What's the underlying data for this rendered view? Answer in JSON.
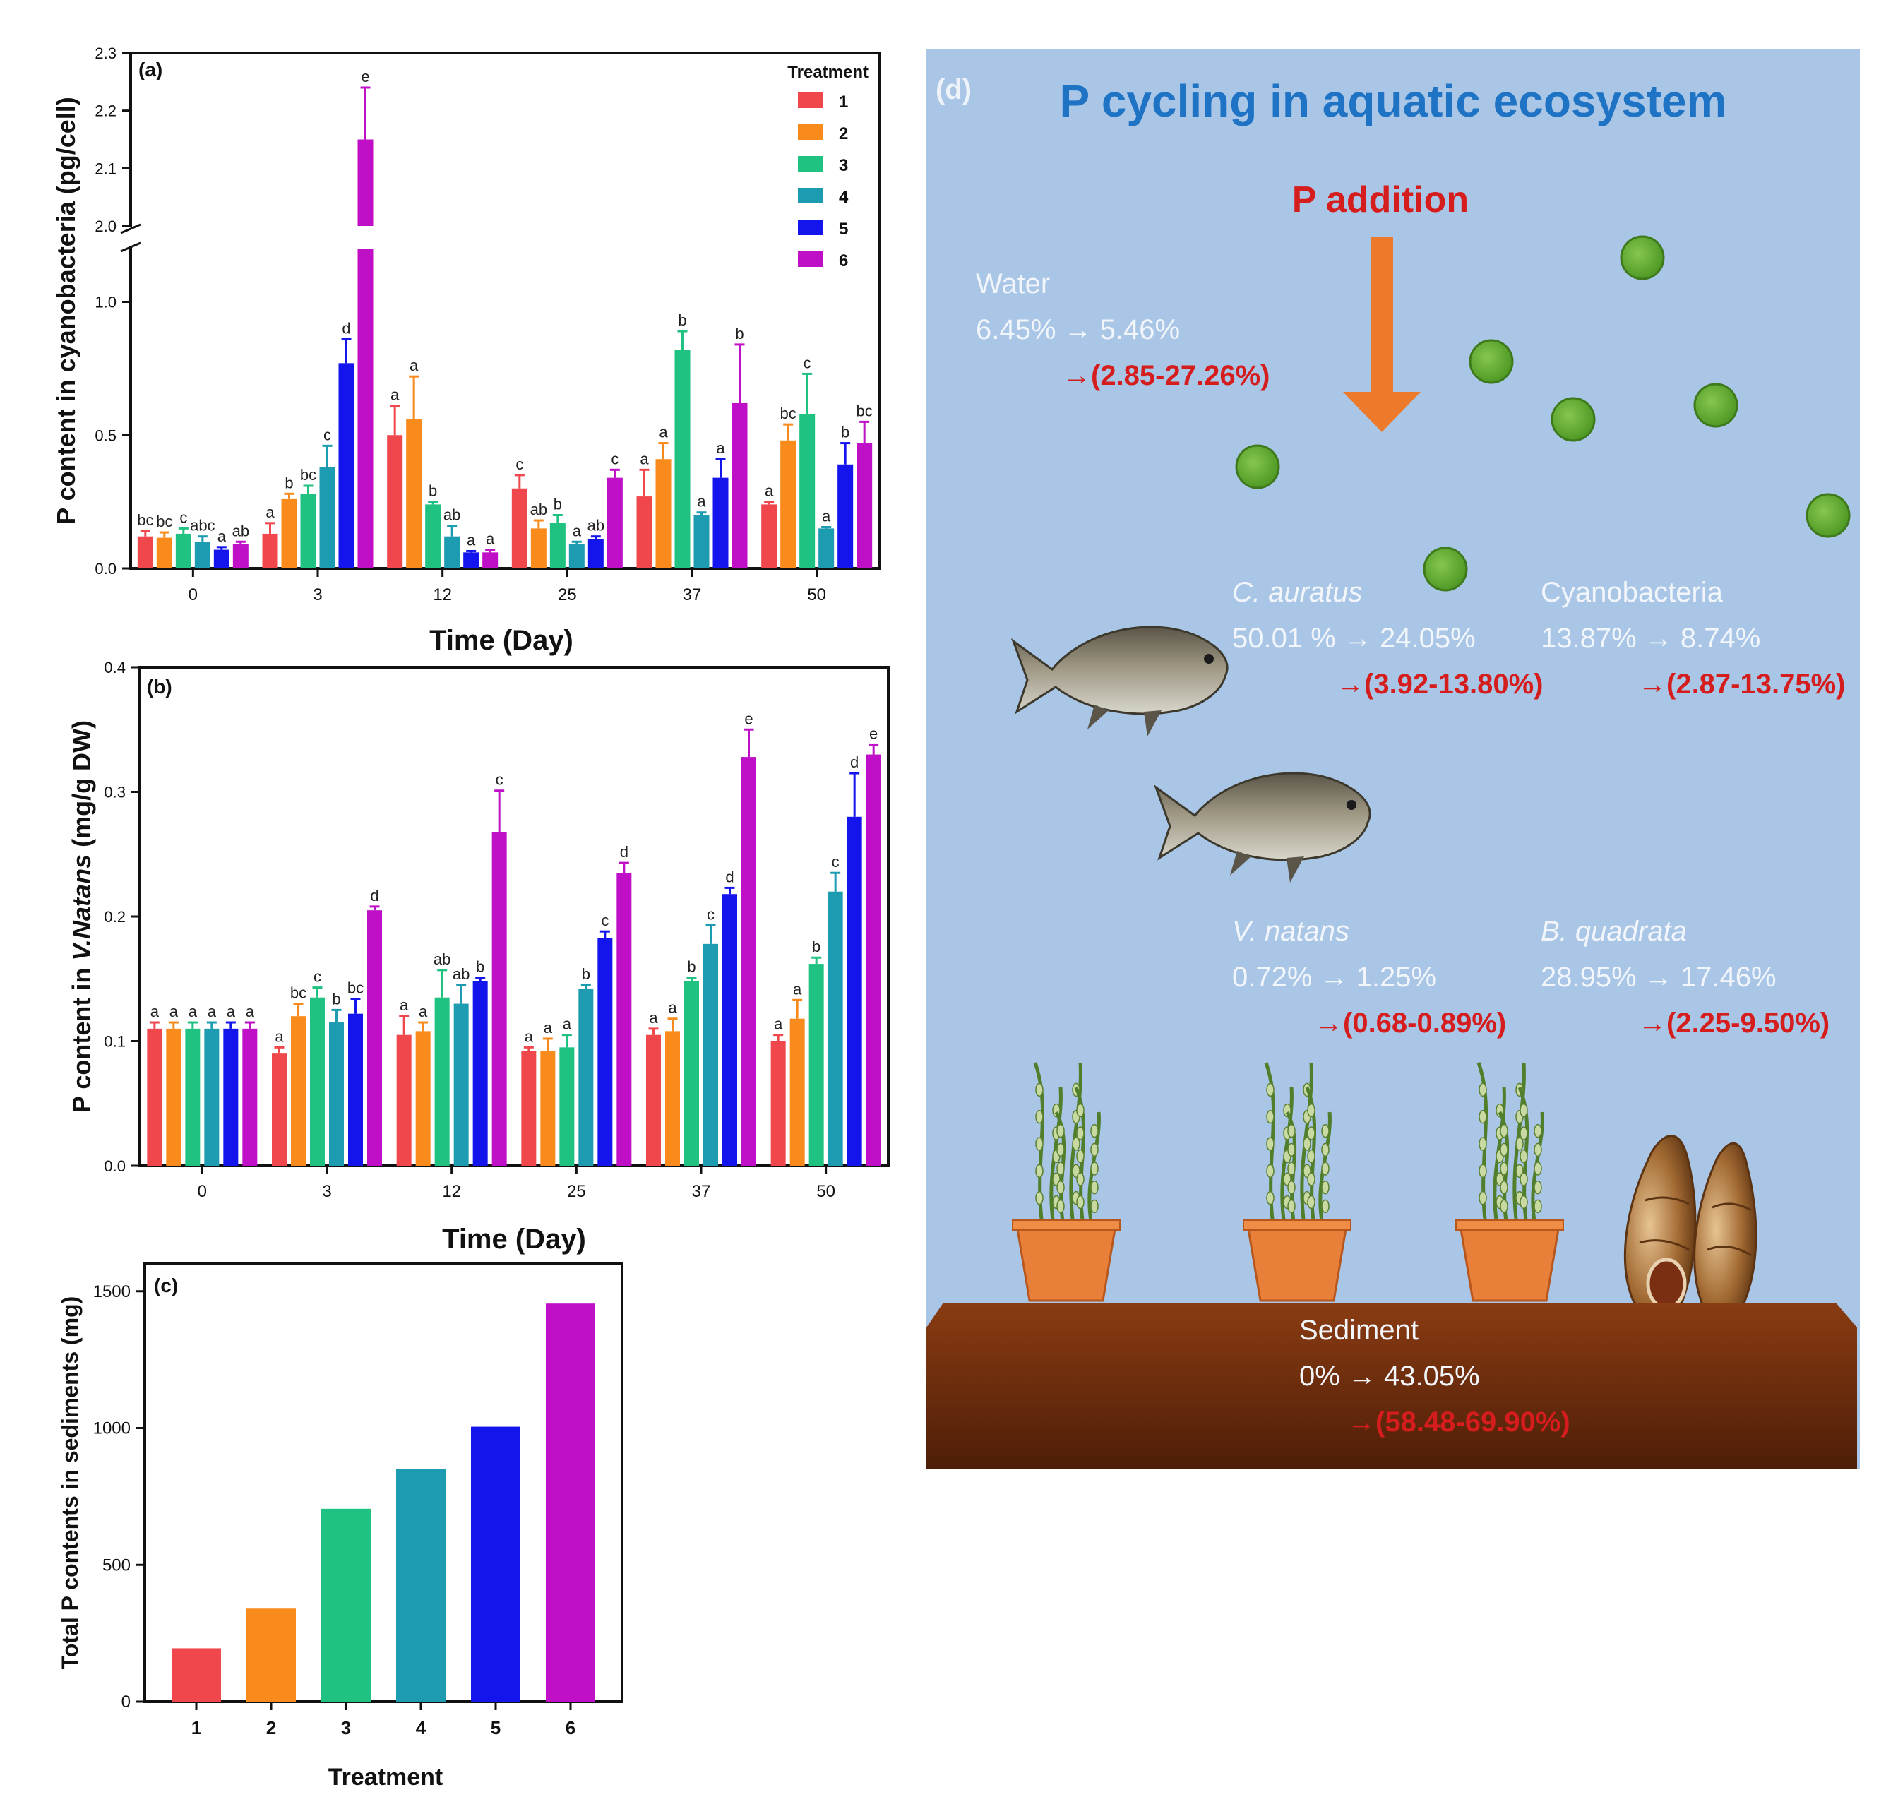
{
  "colors": {
    "treatments": [
      "#f0474c",
      "#f98a1c",
      "#1fc280",
      "#1d9bb0",
      "#1414ec",
      "#bf0fc7"
    ],
    "panel_bg": "#a9c6e6",
    "title_blue": "#1f73c4",
    "red": "#d51d1d",
    "arrow_orange": "#ec7a2a",
    "sediment": "#7a3414",
    "pot": "#e9803a",
    "cell": "#6fb33b",
    "white_text": "#f2f6fb"
  },
  "chart_data": [
    {
      "panel": "(a)",
      "type": "bar",
      "title": "",
      "xlabel": "Time (Day)",
      "ylabel": "P content in cyanobacteria (pg/cell)",
      "categories": [
        "0",
        "3",
        "12",
        "25",
        "37",
        "50"
      ],
      "ylim_lower": [
        0,
        1.2
      ],
      "ylim_upper": [
        2.0,
        2.3
      ],
      "yticks_lower": [
        "0.0",
        "0.5",
        "1.0"
      ],
      "yticks_upper": [
        "2.0",
        "2.1",
        "2.2",
        "2.3"
      ],
      "legend_title": "Treatment",
      "legend_position": "top-right",
      "series": [
        {
          "name": "1",
          "values": [
            0.12,
            0.13,
            0.5,
            0.3,
            0.27,
            0.24
          ],
          "errors": [
            0.02,
            0.04,
            0.11,
            0.05,
            0.1,
            0.01
          ],
          "letters": [
            "bc",
            "a",
            "a",
            "c",
            "a",
            "a"
          ]
        },
        {
          "name": "2",
          "values": [
            0.115,
            0.26,
            0.56,
            0.15,
            0.41,
            0.48
          ],
          "errors": [
            0.02,
            0.02,
            0.16,
            0.03,
            0.06,
            0.06
          ],
          "letters": [
            "bc",
            "b",
            "a",
            "ab",
            "a",
            "bc"
          ]
        },
        {
          "name": "3",
          "values": [
            0.13,
            0.28,
            0.24,
            0.17,
            0.82,
            0.58
          ],
          "errors": [
            0.02,
            0.03,
            0.01,
            0.03,
            0.07,
            0.15
          ],
          "letters": [
            "c",
            "bc",
            "b",
            "b",
            "b",
            "c"
          ]
        },
        {
          "name": "4",
          "values": [
            0.1,
            0.38,
            0.12,
            0.09,
            0.2,
            0.15
          ],
          "errors": [
            0.02,
            0.08,
            0.04,
            0.01,
            0.01,
            0.005
          ],
          "letters": [
            "abc",
            "c",
            "ab",
            "a",
            "a",
            "a"
          ]
        },
        {
          "name": "5",
          "values": [
            0.07,
            0.77,
            0.06,
            0.11,
            0.34,
            0.39
          ],
          "errors": [
            0.01,
            0.09,
            0.005,
            0.01,
            0.07,
            0.08
          ],
          "letters": [
            "a",
            "d",
            "a",
            "ab",
            "a",
            "b"
          ]
        },
        {
          "name": "6",
          "values": [
            0.09,
            2.15,
            0.06,
            0.34,
            0.62,
            0.47
          ],
          "errors": [
            0.01,
            0.09,
            0.01,
            0.03,
            0.22,
            0.08
          ],
          "letters": [
            "ab",
            "e",
            "a",
            "c",
            "b",
            "bc"
          ]
        }
      ]
    },
    {
      "panel": "(b)",
      "type": "bar",
      "title": "",
      "xlabel": "Time (Day)",
      "ylabel_prefix": "P content in ",
      "ylabel_italic": "V.Natans",
      "ylabel_suffix": " (mg/g DW)",
      "categories": [
        "0",
        "3",
        "12",
        "25",
        "37",
        "50"
      ],
      "ylim": [
        0,
        0.4
      ],
      "yticks": [
        "0.0",
        "0.1",
        "0.2",
        "0.3",
        "0.4"
      ],
      "series": [
        {
          "name": "1",
          "values": [
            0.11,
            0.09,
            0.105,
            0.092,
            0.105,
            0.1
          ],
          "errors": [
            0.005,
            0.005,
            0.015,
            0.003,
            0.005,
            0.005
          ],
          "letters": [
            "a",
            "a",
            "a",
            "a",
            "a",
            "a"
          ]
        },
        {
          "name": "2",
          "values": [
            0.11,
            0.12,
            0.108,
            0.092,
            0.108,
            0.118
          ],
          "errors": [
            0.005,
            0.01,
            0.007,
            0.01,
            0.01,
            0.015
          ],
          "letters": [
            "a",
            "bc",
            "a",
            "a",
            "a",
            "a"
          ]
        },
        {
          "name": "3",
          "values": [
            0.11,
            0.135,
            0.135,
            0.095,
            0.148,
            0.162
          ],
          "errors": [
            0.005,
            0.008,
            0.022,
            0.01,
            0.003,
            0.005
          ],
          "letters": [
            "a",
            "c",
            "ab",
            "a",
            "b",
            "b"
          ]
        },
        {
          "name": "4",
          "values": [
            0.11,
            0.115,
            0.13,
            0.142,
            0.178,
            0.22
          ],
          "errors": [
            0.005,
            0.01,
            0.015,
            0.003,
            0.015,
            0.015
          ],
          "letters": [
            "a",
            "b",
            "ab",
            "b",
            "c",
            "c"
          ]
        },
        {
          "name": "5",
          "values": [
            0.11,
            0.122,
            0.148,
            0.183,
            0.218,
            0.28
          ],
          "errors": [
            0.005,
            0.012,
            0.003,
            0.005,
            0.005,
            0.035
          ],
          "letters": [
            "a",
            "bc",
            "b",
            "c",
            "d",
            "d"
          ]
        },
        {
          "name": "6",
          "values": [
            0.11,
            0.205,
            0.268,
            0.235,
            0.328,
            0.33
          ],
          "errors": [
            0.005,
            0.003,
            0.033,
            0.008,
            0.022,
            0.008
          ],
          "letters": [
            "a",
            "d",
            "c",
            "d",
            "e",
            "e"
          ]
        }
      ]
    },
    {
      "panel": "(c)",
      "type": "bar",
      "title": "",
      "xlabel": "Treatment",
      "ylabel": "Total P contents in sediments (mg)",
      "categories": [
        "1",
        "2",
        "3",
        "4",
        "5",
        "6"
      ],
      "values": [
        195,
        340,
        705,
        850,
        1005,
        1455
      ],
      "ylim": [
        0,
        1600
      ],
      "yticks": [
        "0",
        "500",
        "1000",
        "1500"
      ]
    }
  ],
  "diagram": {
    "panel": "(d)",
    "title": "P cycling in aquatic ecosystem",
    "p_addition": "P addition",
    "water": {
      "label": "Water",
      "change": "6.45% → 5.46%",
      "range": "→(2.85-27.26%)"
    },
    "c_auratus": {
      "label": "C. auratus",
      "change": "50.01 % → 24.05%",
      "range": "→(3.92-13.80%)"
    },
    "cyanobacteria": {
      "label": "Cyanobacteria",
      "change": "13.87% → 8.74%",
      "range": "→(2.87-13.75%)"
    },
    "v_natans": {
      "label": "V. natans",
      "change": "0.72% → 1.25%",
      "range": "→(0.68-0.89%)"
    },
    "b_quadrata": {
      "label": "B. quadrata",
      "change": "28.95% → 17.46%",
      "range": "→(2.25-9.50%)"
    },
    "sediment": {
      "label": "Sediment",
      "change": "0% → 43.05%",
      "range": "→(58.48-69.90%)"
    }
  }
}
